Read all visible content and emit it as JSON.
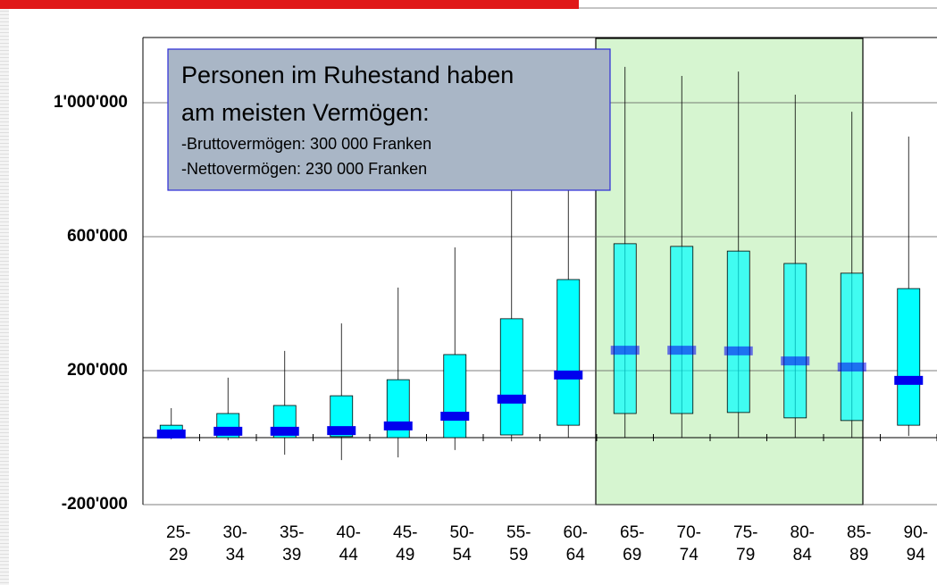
{
  "chart_data": {
    "type": "box",
    "annotation": [
      "Personen im Ruhestand haben",
      "am meisten Vermögen:",
      "-Bruttovermögen: 300 000 Franken",
      "-Nettovermögen: 230 000 Franken"
    ],
    "categories": [
      "25-\n29",
      "30-\n34",
      "35-\n39",
      "40-\n44",
      "45-\n49",
      "50-\n54",
      "55-\n59",
      "60-\n64",
      "65-\n69",
      "70-\n74",
      "75-\n79",
      "80-\n84",
      "85-\n89",
      "90-\n94"
    ],
    "values": [
      [
        -5000,
        0,
        11000,
        37000,
        88000
      ],
      [
        -8000,
        0,
        19000,
        72000,
        179000
      ],
      [
        -51000,
        0,
        19000,
        96000,
        259000
      ],
      [
        -67000,
        3000,
        21000,
        125000,
        341000
      ],
      [
        -59000,
        0,
        35000,
        173000,
        448000
      ],
      [
        -37000,
        0,
        64000,
        248000,
        568000
      ],
      [
        -11000,
        8000,
        115000,
        355000,
        760000
      ],
      [
        0,
        37000,
        187000,
        472000,
        739000
      ],
      [
        0,
        72000,
        261000,
        579000,
        1107000
      ],
      [
        0,
        72000,
        261000,
        571000,
        1080000
      ],
      [
        0,
        75000,
        259000,
        557000,
        1093000
      ],
      [
        0,
        59000,
        229000,
        520000,
        1024000
      ],
      [
        0,
        51000,
        211000,
        491000,
        973000
      ],
      [
        5000,
        37000,
        171000,
        445000,
        899000
      ]
    ],
    "box_color": "#00ffff",
    "median_color": "#0000ee",
    "ylim": [
      -200000,
      1200000
    ],
    "yticks": [
      {
        "value": -200000,
        "label": "-200'000"
      },
      {
        "value": 200000,
        "label": "200'000"
      },
      {
        "value": 600000,
        "label": "600'000"
      },
      {
        "value": 1000000,
        "label": "1'000'000"
      }
    ],
    "grid": true
  }
}
